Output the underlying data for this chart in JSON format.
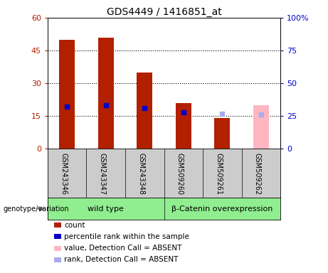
{
  "title": "GDS4449 / 1416851_at",
  "samples": [
    "GSM243346",
    "GSM243347",
    "GSM243348",
    "GSM509260",
    "GSM509261",
    "GSM509262"
  ],
  "count_values": [
    50,
    51,
    35,
    21,
    14,
    null
  ],
  "count_absent": [
    null,
    null,
    null,
    null,
    null,
    20
  ],
  "percentile_values": [
    32,
    33,
    31,
    28,
    null,
    null
  ],
  "percentile_absent": [
    null,
    null,
    null,
    null,
    27,
    26
  ],
  "ylim_left": [
    0,
    60
  ],
  "ylim_right": [
    0,
    100
  ],
  "yticks_left": [
    0,
    15,
    30,
    45,
    60
  ],
  "ytick_labels_left": [
    "0",
    "15",
    "30",
    "45",
    "60"
  ],
  "yticks_right": [
    0,
    25,
    50,
    75,
    100
  ],
  "ytick_labels_right": [
    "0",
    "25",
    "50",
    "75",
    "100%"
  ],
  "bar_color_present": "#b22000",
  "bar_color_absent": "#ffb6c1",
  "dot_color_present": "#0000cc",
  "dot_color_absent": "#aaaaee",
  "genotype_groups": [
    {
      "label": "wild type",
      "start": 0,
      "end": 3
    },
    {
      "label": "β-Catenin overexpression",
      "start": 3,
      "end": 6
    }
  ],
  "green_color": "#90EE90",
  "gray_color": "#cccccc",
  "legend_items": [
    {
      "color": "#b22000",
      "label": "count"
    },
    {
      "color": "#0000cc",
      "label": "percentile rank within the sample"
    },
    {
      "color": "#ffb6c1",
      "label": "value, Detection Call = ABSENT"
    },
    {
      "color": "#aaaaee",
      "label": "rank, Detection Call = ABSENT"
    }
  ],
  "grid_lines": [
    15,
    30,
    45
  ],
  "bar_width": 0.4
}
